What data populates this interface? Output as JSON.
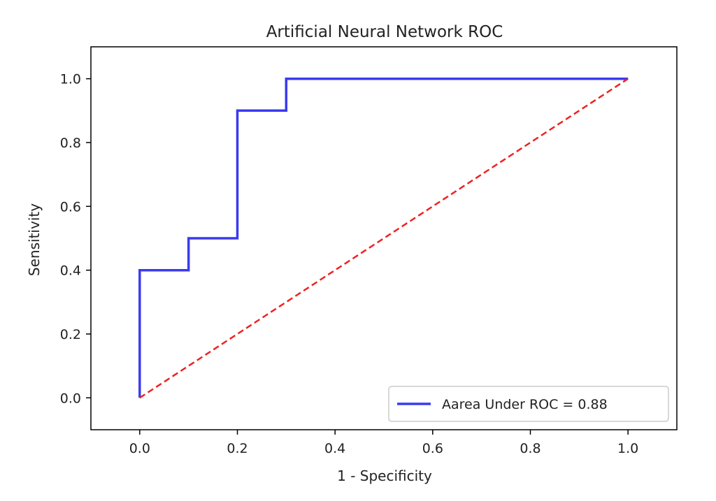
{
  "chart_data": {
    "type": "line",
    "title": "Artificial Neural Network ROC",
    "xlabel": "1 - Specificity",
    "ylabel": "Sensitivity",
    "xlim": [
      -0.1,
      1.1
    ],
    "ylim": [
      -0.1,
      1.1
    ],
    "xticks": [
      0.0,
      0.2,
      0.4,
      0.6,
      0.8,
      1.0
    ],
    "yticks": [
      0.0,
      0.2,
      0.4,
      0.6,
      0.8,
      1.0
    ],
    "xtick_labels": [
      "0.0",
      "0.2",
      "0.4",
      "0.6",
      "0.8",
      "1.0"
    ],
    "ytick_labels": [
      "0.0",
      "0.2",
      "0.4",
      "0.6",
      "0.8",
      "1.0"
    ],
    "grid": false,
    "legend_position": "lower right",
    "series": [
      {
        "name": "Aarea Under ROC = 0.88",
        "style": "solid",
        "color": "#3a3af0",
        "x": [
          0.0,
          0.0,
          0.1,
          0.1,
          0.2,
          0.2,
          0.3,
          0.3,
          1.0
        ],
        "y": [
          0.0,
          0.4,
          0.4,
          0.5,
          0.5,
          0.9,
          0.9,
          1.0,
          1.0
        ]
      },
      {
        "style": "dashed",
        "color": "#ee2222",
        "x": [
          0.0,
          1.0
        ],
        "y": [
          0.0,
          1.0
        ]
      }
    ]
  }
}
